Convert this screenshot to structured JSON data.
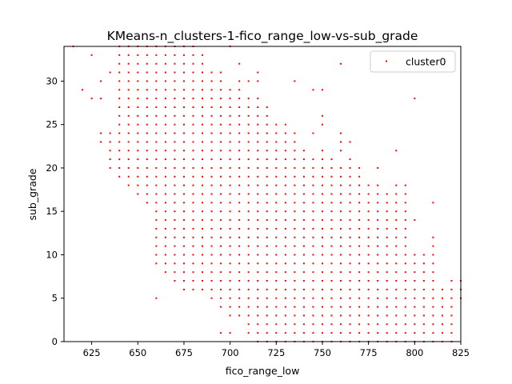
{
  "chart_data": {
    "type": "scatter",
    "title": "KMeans-n_clusters-1-fico_range_low-vs-sub_grade",
    "xlabel": "fico_range_low",
    "ylabel": "sub_grade",
    "xlim": [
      610,
      825
    ],
    "ylim": [
      0,
      34
    ],
    "xticks": [
      650,
      675,
      700,
      725,
      750,
      775,
      800,
      825,
      625
    ],
    "yticks": [
      0,
      5,
      10,
      15,
      20,
      25,
      30
    ],
    "grid": false,
    "legend": {
      "entries": [
        "cluster0"
      ],
      "placement": "top-right"
    },
    "point_color": "#ff0000",
    "series": [
      {
        "name": "cluster0",
        "note": "points on a grid; x step 5, y step 1",
        "x_step": 5,
        "columns": [
          {
            "x": 615,
            "y_ranges": [
              [
                34,
                34
              ]
            ]
          },
          {
            "x": 620,
            "y_ranges": [
              [
                29,
                29
              ]
            ]
          },
          {
            "x": 625,
            "y_ranges": [
              [
                28,
                28
              ],
              [
                33,
                33
              ]
            ]
          },
          {
            "x": 630,
            "y_ranges": [
              [
                23,
                24
              ],
              [
                28,
                28
              ],
              [
                30,
                30
              ]
            ]
          },
          {
            "x": 635,
            "y_ranges": [
              [
                20,
                24
              ],
              [
                31,
                31
              ]
            ]
          },
          {
            "x": 640,
            "y_ranges": [
              [
                19,
                34
              ]
            ]
          },
          {
            "x": 645,
            "y_ranges": [
              [
                18,
                34
              ]
            ]
          },
          {
            "x": 650,
            "y_ranges": [
              [
                17,
                34
              ]
            ]
          },
          {
            "x": 655,
            "y_ranges": [
              [
                16,
                34
              ]
            ]
          },
          {
            "x": 660,
            "y_ranges": [
              [
                5,
                5
              ],
              [
                9,
                34
              ]
            ]
          },
          {
            "x": 665,
            "y_ranges": [
              [
                8,
                34
              ]
            ]
          },
          {
            "x": 670,
            "y_ranges": [
              [
                7,
                34
              ]
            ]
          },
          {
            "x": 675,
            "y_ranges": [
              [
                6,
                34
              ]
            ]
          },
          {
            "x": 680,
            "y_ranges": [
              [
                6,
                34
              ]
            ]
          },
          {
            "x": 685,
            "y_ranges": [
              [
                6,
                33
              ]
            ]
          },
          {
            "x": 690,
            "y_ranges": [
              [
                5,
                31
              ]
            ]
          },
          {
            "x": 695,
            "y_ranges": [
              [
                1,
                1
              ],
              [
                4,
                31
              ]
            ]
          },
          {
            "x": 700,
            "y_ranges": [
              [
                1,
                1
              ],
              [
                3,
                29
              ],
              [
                34,
                34
              ]
            ]
          },
          {
            "x": 705,
            "y_ranges": [
              [
                3,
                30
              ],
              [
                32,
                32
              ]
            ]
          },
          {
            "x": 710,
            "y_ranges": [
              [
                1,
                28
              ],
              [
                30,
                30
              ]
            ]
          },
          {
            "x": 715,
            "y_ranges": [
              [
                0,
                28
              ],
              [
                30,
                31
              ]
            ]
          },
          {
            "x": 720,
            "y_ranges": [
              [
                0,
                27
              ]
            ]
          },
          {
            "x": 725,
            "y_ranges": [
              [
                0,
                25
              ]
            ]
          },
          {
            "x": 730,
            "y_ranges": [
              [
                0,
                25
              ]
            ]
          },
          {
            "x": 735,
            "y_ranges": [
              [
                0,
                24
              ],
              [
                30,
                30
              ]
            ]
          },
          {
            "x": 740,
            "y_ranges": [
              [
                0,
                22
              ]
            ]
          },
          {
            "x": 745,
            "y_ranges": [
              [
                0,
                21
              ],
              [
                24,
                24
              ],
              [
                29,
                29
              ]
            ]
          },
          {
            "x": 750,
            "y_ranges": [
              [
                0,
                22
              ],
              [
                25,
                26
              ],
              [
                29,
                29
              ]
            ]
          },
          {
            "x": 755,
            "y_ranges": [
              [
                0,
                21
              ]
            ]
          },
          {
            "x": 760,
            "y_ranges": [
              [
                0,
                20
              ],
              [
                22,
                24
              ],
              [
                32,
                32
              ]
            ]
          },
          {
            "x": 765,
            "y_ranges": [
              [
                0,
                21
              ],
              [
                23,
                23
              ]
            ]
          },
          {
            "x": 770,
            "y_ranges": [
              [
                0,
                20
              ]
            ]
          },
          {
            "x": 775,
            "y_ranges": [
              [
                0,
                18
              ]
            ]
          },
          {
            "x": 780,
            "y_ranges": [
              [
                0,
                18
              ],
              [
                20,
                20
              ]
            ]
          },
          {
            "x": 785,
            "y_ranges": [
              [
                0,
                17
              ]
            ]
          },
          {
            "x": 790,
            "y_ranges": [
              [
                0,
                18
              ],
              [
                22,
                22
              ]
            ]
          },
          {
            "x": 795,
            "y_ranges": [
              [
                0,
                18
              ]
            ]
          },
          {
            "x": 800,
            "y_ranges": [
              [
                0,
                10
              ],
              [
                14,
                14
              ],
              [
                28,
                28
              ]
            ]
          },
          {
            "x": 805,
            "y_ranges": [
              [
                0,
                10
              ]
            ]
          },
          {
            "x": 810,
            "y_ranges": [
              [
                0,
                12
              ],
              [
                16,
                16
              ]
            ]
          },
          {
            "x": 815,
            "y_ranges": [
              [
                0,
                6
              ]
            ]
          },
          {
            "x": 820,
            "y_ranges": [
              [
                0,
                7
              ]
            ]
          },
          {
            "x": 825,
            "y_ranges": [
              [
                5,
                7
              ]
            ]
          }
        ]
      }
    ]
  }
}
